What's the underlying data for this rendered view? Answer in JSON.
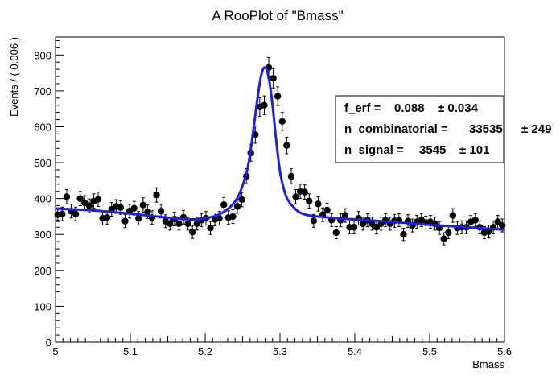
{
  "chart_data": {
    "type": "scatter",
    "title": "A RooPlot of \"Bmass\"",
    "xlabel": "Bmass",
    "ylabel": "Events / ( 0.006 )",
    "xlim": [
      5.0,
      5.6
    ],
    "ylim": [
      0,
      850
    ],
    "xticks": [
      5,
      5.1,
      5.2,
      5.3,
      5.4,
      5.5,
      5.6
    ],
    "xtick_labels": [
      "5",
      "5.1",
      "5.2",
      "5.3",
      "5.4",
      "5.5",
      "5.6"
    ],
    "yticks": [
      0,
      100,
      200,
      300,
      400,
      500,
      600,
      700,
      800
    ],
    "ytick_labels": [
      "0",
      "100",
      "200",
      "300",
      "400",
      "500",
      "600",
      "700",
      "800"
    ],
    "grid": false,
    "legend": "none",
    "bin_width": 0.006,
    "series": [
      {
        "kind": "data-points-with-errors",
        "color": "#000000",
        "x": [
          5.003,
          5.009,
          5.015,
          5.021,
          5.027,
          5.033,
          5.039,
          5.045,
          5.051,
          5.057,
          5.063,
          5.069,
          5.075,
          5.081,
          5.087,
          5.093,
          5.099,
          5.105,
          5.111,
          5.117,
          5.123,
          5.129,
          5.135,
          5.141,
          5.147,
          5.153,
          5.159,
          5.165,
          5.171,
          5.177,
          5.183,
          5.189,
          5.195,
          5.201,
          5.207,
          5.213,
          5.219,
          5.225,
          5.231,
          5.237,
          5.243,
          5.249,
          5.255,
          5.261,
          5.267,
          5.273,
          5.279,
          5.285,
          5.291,
          5.297,
          5.303,
          5.309,
          5.315,
          5.321,
          5.327,
          5.333,
          5.339,
          5.345,
          5.351,
          5.357,
          5.363,
          5.369,
          5.375,
          5.381,
          5.387,
          5.393,
          5.399,
          5.405,
          5.411,
          5.417,
          5.423,
          5.429,
          5.435,
          5.441,
          5.447,
          5.453,
          5.459,
          5.465,
          5.471,
          5.477,
          5.483,
          5.489,
          5.495,
          5.501,
          5.507,
          5.513,
          5.519,
          5.525,
          5.531,
          5.537,
          5.543,
          5.549,
          5.555,
          5.561,
          5.567,
          5.573,
          5.579,
          5.585,
          5.591,
          5.597
        ],
        "y": [
          355,
          357,
          405,
          365,
          357,
          400,
          388,
          380,
          393,
          398,
          345,
          347,
          370,
          378,
          375,
          337,
          365,
          373,
          345,
          382,
          363,
          347,
          410,
          365,
          337,
          330,
          343,
          330,
          348,
          330,
          307,
          330,
          340,
          345,
          318,
          342,
          345,
          383,
          347,
          350,
          378,
          397,
          462,
          527,
          578,
          655,
          660,
          765,
          735,
          685,
          615,
          548,
          462,
          405,
          420,
          418,
          393,
          338,
          385,
          355,
          368,
          340,
          305,
          340,
          353,
          320,
          320,
          345,
          330,
          340,
          330,
          320,
          330,
          340,
          330,
          338,
          340,
          300,
          337,
          325,
          335,
          340,
          333,
          335,
          330,
          318,
          288,
          305,
          353,
          318,
          320,
          320,
          335,
          340,
          320,
          305,
          308,
          320,
          335,
          325
        ],
        "error": [
          19,
          19,
          20,
          19,
          19,
          20,
          20,
          19,
          20,
          20,
          19,
          19,
          19,
          19,
          19,
          18,
          19,
          19,
          19,
          20,
          19,
          19,
          20,
          19,
          18,
          18,
          19,
          18,
          19,
          18,
          18,
          18,
          18,
          19,
          18,
          18,
          19,
          20,
          19,
          19,
          19,
          20,
          21,
          23,
          24,
          26,
          26,
          28,
          27,
          26,
          25,
          23,
          21,
          20,
          20,
          20,
          20,
          18,
          20,
          19,
          19,
          18,
          17,
          18,
          19,
          18,
          18,
          19,
          18,
          18,
          18,
          18,
          18,
          18,
          18,
          18,
          18,
          17,
          18,
          18,
          18,
          18,
          18,
          18,
          18,
          18,
          17,
          17,
          19,
          18,
          18,
          18,
          18,
          18,
          18,
          17,
          18,
          18,
          18,
          18
        ]
      },
      {
        "kind": "fit-curve",
        "color": "#1f1fe0",
        "x": [
          5.0,
          5.05,
          5.1,
          5.15,
          5.18,
          5.2,
          5.22,
          5.235,
          5.245,
          5.255,
          5.26,
          5.265,
          5.27,
          5.275,
          5.28,
          5.285,
          5.29,
          5.295,
          5.3,
          5.305,
          5.31,
          5.32,
          5.33,
          5.35,
          5.4,
          5.45,
          5.5,
          5.55,
          5.6
        ],
        "y": [
          372,
          367,
          358,
          347,
          342,
          345,
          357,
          380,
          410,
          470,
          525,
          600,
          680,
          745,
          765,
          735,
          660,
          560,
          475,
          428,
          398,
          372,
          358,
          350,
          342,
          335,
          327,
          320,
          313
        ]
      }
    ],
    "stats_box": {
      "lines": [
        {
          "name": "f_erf =",
          "value": "0.088",
          "error": "± 0.034"
        },
        {
          "name": "n_combinatorial =",
          "value": "33535",
          "error": "± 249"
        },
        {
          "name": "n_signal =",
          "value": "3545",
          "error": "± 101"
        }
      ]
    }
  }
}
